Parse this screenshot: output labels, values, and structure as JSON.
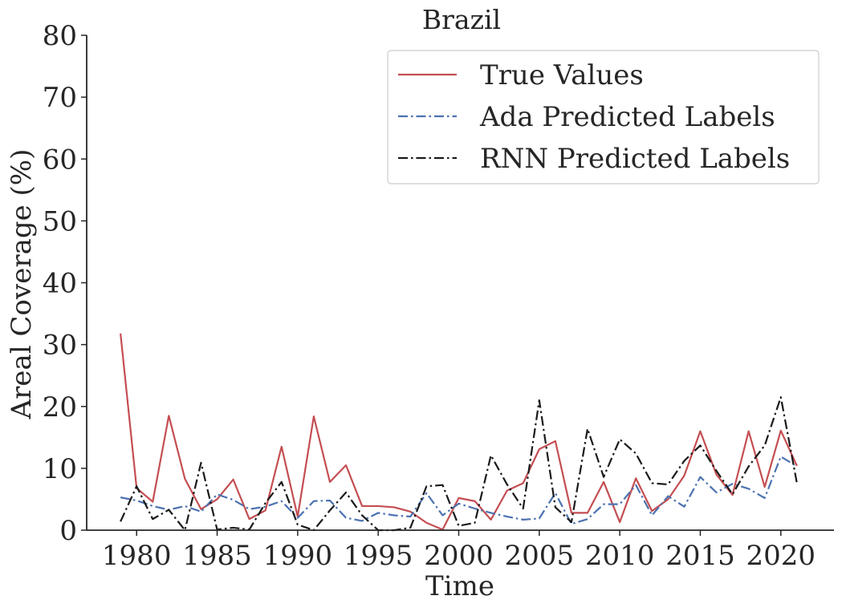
{
  "chart_data": {
    "type": "line",
    "title": "Brazil",
    "xlabel": "Time",
    "ylabel": "Areal Coverage (%)",
    "xlim": [
      1976.9,
      2023.3
    ],
    "ylim": [
      0,
      80
    ],
    "xticks": [
      1980,
      1985,
      1990,
      1995,
      2000,
      2005,
      2010,
      2015,
      2020
    ],
    "yticks": [
      0,
      10,
      20,
      30,
      40,
      50,
      60,
      70,
      80
    ],
    "grid": false,
    "legend_position": "top-right",
    "x": [
      1979,
      1980,
      1981,
      1982,
      1983,
      1984,
      1985,
      1986,
      1987,
      1988,
      1989,
      1990,
      1991,
      1992,
      1993,
      1994,
      1995,
      1996,
      1997,
      1998,
      1999,
      2000,
      2001,
      2002,
      2003,
      2004,
      2005,
      2006,
      2007,
      2008,
      2009,
      2010,
      2011,
      2012,
      2013,
      2014,
      2015,
      2016,
      2017,
      2018,
      2019,
      2020,
      2021
    ],
    "series": [
      {
        "name": "True Values",
        "color": "#c44e52",
        "dash": "solid",
        "values": [
          31.8,
          6.8,
          4.6,
          18.5,
          8.3,
          3.4,
          5.0,
          8.2,
          1.8,
          3.2,
          13.5,
          2.2,
          18.4,
          7.8,
          10.5,
          3.9,
          3.9,
          3.7,
          3.0,
          1.2,
          0.1,
          5.2,
          4.7,
          1.7,
          6.4,
          7.6,
          13.1,
          14.4,
          2.8,
          2.8,
          7.8,
          1.3,
          8.4,
          3.1,
          5.0,
          8.8,
          16.0,
          9.0,
          5.7,
          16.0,
          7.0,
          16.1,
          10.4
        ]
      },
      {
        "name": "Ada Predicted Labels",
        "color": "#4c72b0",
        "dash": "dashdot",
        "values": [
          5.3,
          4.8,
          3.9,
          3.3,
          3.9,
          3.0,
          5.8,
          4.9,
          3.4,
          3.8,
          4.7,
          2.0,
          4.7,
          4.8,
          2.0,
          1.5,
          2.8,
          2.4,
          2.2,
          6.0,
          2.4,
          4.3,
          3.5,
          2.8,
          2.2,
          1.7,
          1.9,
          6.0,
          1.0,
          1.8,
          4.2,
          4.2,
          7.3,
          2.4,
          5.5,
          3.8,
          8.6,
          6.1,
          7.5,
          6.7,
          5.2,
          11.9,
          10.3
        ]
      },
      {
        "name": "RNN Predicted Labels",
        "color": "#1a1a1a",
        "dash": "dashdot",
        "values": [
          1.4,
          7.1,
          1.8,
          3.3,
          0.0,
          10.9,
          0.1,
          0.4,
          0.1,
          4.4,
          7.8,
          0.9,
          0.0,
          3.2,
          6.1,
          2.4,
          0.0,
          0.0,
          0.4,
          7.1,
          7.3,
          0.7,
          1.2,
          12.1,
          7.4,
          3.5,
          21.0,
          3.7,
          1.3,
          16.4,
          8.6,
          14.7,
          12.4,
          7.6,
          7.4,
          11.2,
          13.7,
          9.6,
          5.8,
          10.3,
          13.7,
          21.5,
          7.6
        ]
      }
    ]
  }
}
